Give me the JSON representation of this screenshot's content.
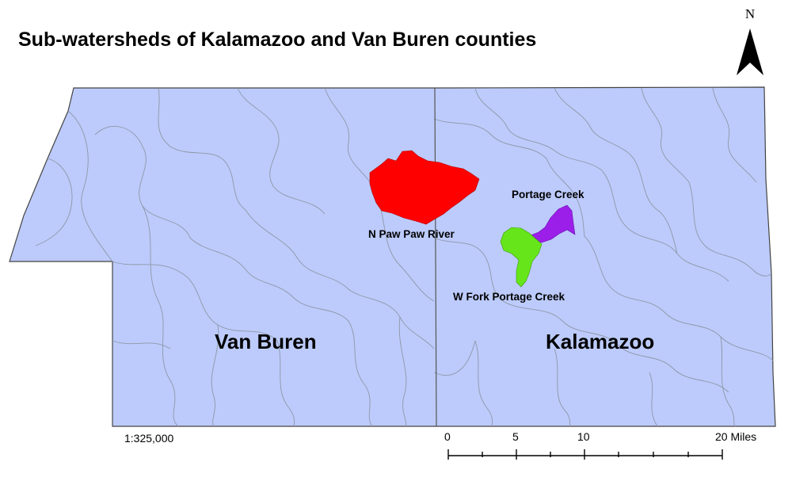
{
  "title": "Sub-watersheds of Kalamazoo and Van Buren counties",
  "north_arrow": {
    "label": "N"
  },
  "counties": [
    {
      "name": "Van Buren"
    },
    {
      "name": "Kalamazoo"
    }
  ],
  "watersheds": [
    {
      "name": "N Paw Paw River",
      "color": "#ff0000"
    },
    {
      "name": "Portage Creek",
      "color": "#9b1fe8"
    },
    {
      "name": "W Fork Portage Creek",
      "color": "#66e61a"
    }
  ],
  "colors": {
    "county_fill": "#bccbfb",
    "subwatershed_lines": "#8f97a8",
    "county_boundary": "#555555"
  },
  "scale": {
    "ratio": "1:325,000",
    "ticks": [
      "0",
      "5",
      "10",
      "20 Miles"
    ]
  }
}
